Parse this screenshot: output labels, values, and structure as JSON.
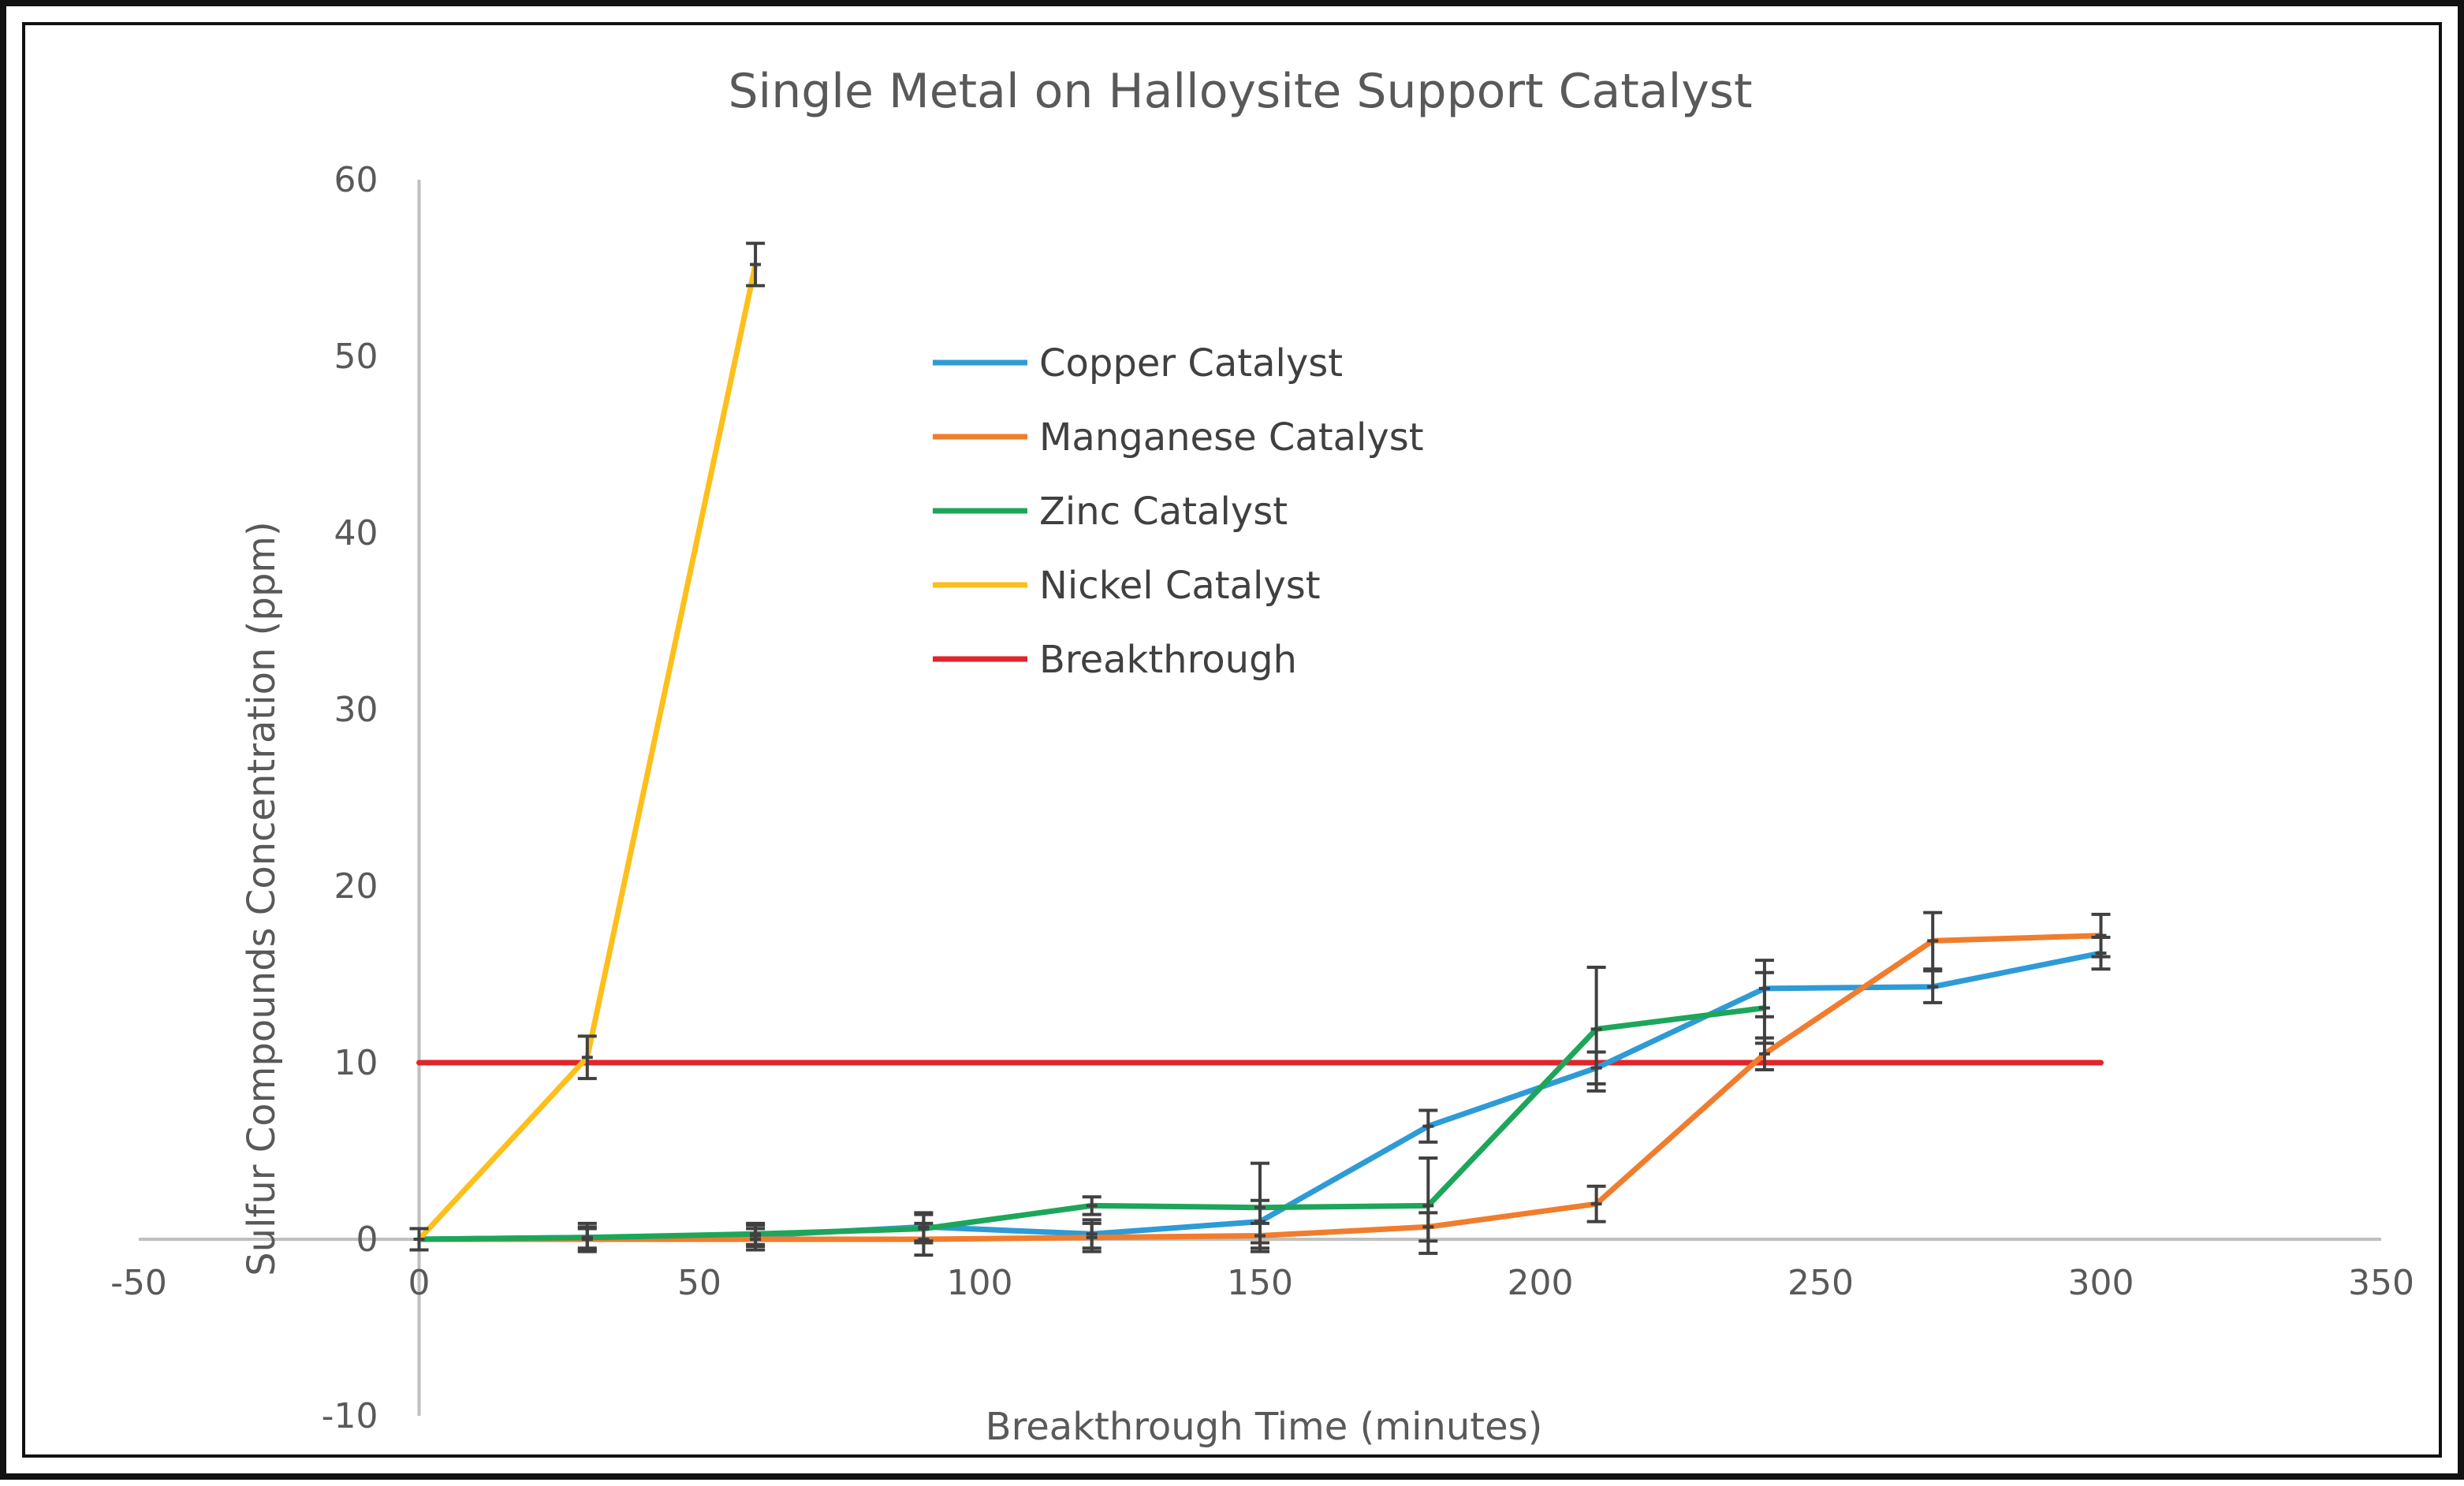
{
  "chart_data": {
    "type": "line",
    "title": "Single Metal on Halloysite Support Catalyst",
    "xlabel": "Breakthrough Time (minutes)",
    "ylabel": "Sulfur Compounds Concentration (ppm)",
    "xlim": [
      -50,
      350
    ],
    "ylim": [
      -10,
      60
    ],
    "xticks": [
      -50,
      0,
      50,
      100,
      150,
      200,
      250,
      300,
      350
    ],
    "yticks": [
      -10,
      0,
      10,
      20,
      30,
      40,
      50,
      60
    ],
    "grid": false,
    "legend_position": "upper-center",
    "series": [
      {
        "name": "Copper Catalyst",
        "color": "#2E9BD6",
        "points": [
          {
            "x": 0,
            "y": 0,
            "err": 0.6
          },
          {
            "x": 30,
            "y": 0.1,
            "err": 0.8
          },
          {
            "x": 60,
            "y": 0.2,
            "err": 0.6
          },
          {
            "x": 90,
            "y": 0.7,
            "err": 0.8
          },
          {
            "x": 120,
            "y": 0.3,
            "err": 0.8
          },
          {
            "x": 150,
            "y": 1.0,
            "err": 1.2
          },
          {
            "x": 180,
            "y": 6.4,
            "err": 0.9
          },
          {
            "x": 210,
            "y": 9.7,
            "err": 0.9
          },
          {
            "x": 240,
            "y": 14.2,
            "err": 1.6
          },
          {
            "x": 270,
            "y": 14.3,
            "err": 0.9
          },
          {
            "x": 300,
            "y": 16.2,
            "err": 0.9
          }
        ]
      },
      {
        "name": "Manganese Catalyst",
        "color": "#F07D2E",
        "points": [
          {
            "x": 0,
            "y": 0,
            "err": 0.6
          },
          {
            "x": 30,
            "y": 0,
            "err": 0.6
          },
          {
            "x": 60,
            "y": 0,
            "err": 0.6
          },
          {
            "x": 90,
            "y": 0,
            "err": 0.9
          },
          {
            "x": 120,
            "y": 0.1,
            "err": 0.8
          },
          {
            "x": 150,
            "y": 0.2,
            "err": 0.7
          },
          {
            "x": 180,
            "y": 0.7,
            "err": 0.8
          },
          {
            "x": 210,
            "y": 2.0,
            "err": 1.0
          },
          {
            "x": 240,
            "y": 10.5,
            "err": 0.9
          },
          {
            "x": 270,
            "y": 16.9,
            "err": 1.6
          },
          {
            "x": 300,
            "y": 17.2,
            "err": 1.2
          }
        ]
      },
      {
        "name": "Zinc Catalyst",
        "color": "#1DA65A",
        "points": [
          {
            "x": 0,
            "y": 0,
            "err": 0.6
          },
          {
            "x": 30,
            "y": 0.1,
            "err": 0.6
          },
          {
            "x": 60,
            "y": 0.3,
            "err": 0.6
          },
          {
            "x": 90,
            "y": 0.6,
            "err": 0.8
          },
          {
            "x": 120,
            "y": 1.9,
            "err": 0.5
          },
          {
            "x": 150,
            "y": 1.8,
            "err": 2.5
          },
          {
            "x": 180,
            "y": 1.9,
            "err": 2.7
          },
          {
            "x": 210,
            "y": 11.9,
            "err": 3.5
          },
          {
            "x": 240,
            "y": 13.1,
            "err": 2.0
          }
        ]
      },
      {
        "name": "Nickel Catalyst",
        "color": "#FDBF1A",
        "points": [
          {
            "x": 0,
            "y": 0,
            "err": 0.6
          },
          {
            "x": 30,
            "y": 10.3,
            "err": 1.2
          },
          {
            "x": 60,
            "y": 55.2,
            "err": 1.2
          }
        ]
      },
      {
        "name": "Breakthrough",
        "color": "#E3242B",
        "points": [
          {
            "x": 0,
            "y": 10
          },
          {
            "x": 300,
            "y": 10
          }
        ]
      }
    ]
  }
}
